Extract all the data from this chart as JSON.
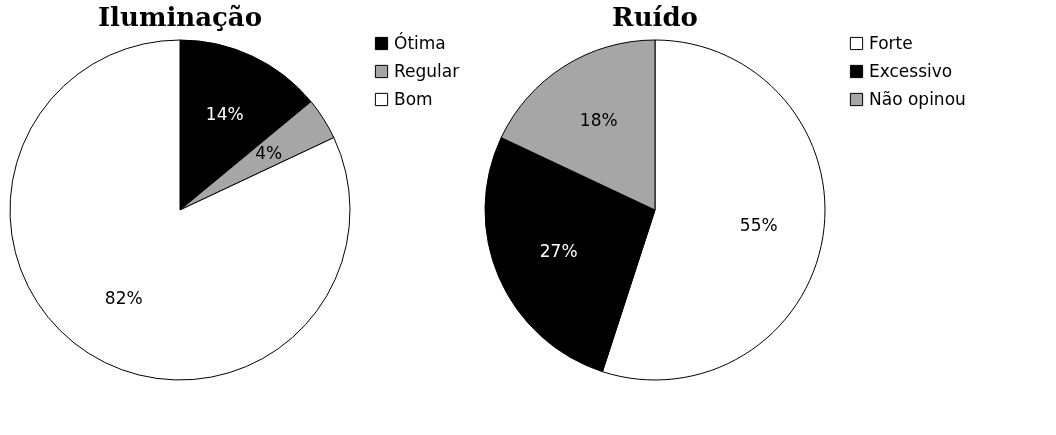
{
  "chart_data": [
    {
      "type": "pie",
      "title": "Iluminação",
      "categories": [
        "Ótima",
        "Regular",
        "Bom"
      ],
      "values": [
        14,
        4,
        82
      ],
      "colors": [
        "#000000",
        "#a6a6a6",
        "#ffffff"
      ],
      "value_labels": [
        "14%",
        "4%",
        "82%"
      ],
      "legend": "right"
    },
    {
      "type": "pie",
      "title": "Ruído",
      "categories": [
        "Forte",
        "Excessivo",
        "Não opinou"
      ],
      "values": [
        55,
        27,
        18
      ],
      "colors": [
        "#ffffff",
        "#000000",
        "#a6a6a6"
      ],
      "value_labels": [
        "55%",
        "27%",
        "18%"
      ],
      "legend": "right"
    }
  ]
}
